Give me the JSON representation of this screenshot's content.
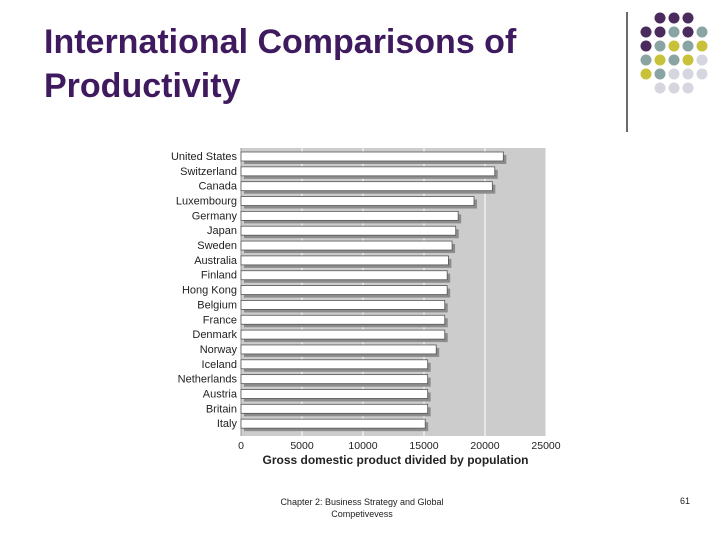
{
  "slide": {
    "title": "International Comparisons of Productivity",
    "footer": "Chapter 2: Business Strategy and Global Competivevess",
    "page_number": "61"
  },
  "colors": {
    "title": "#3f1a5e",
    "dot_purple": "#4b2a5e",
    "dot_teal": "#8aa3a3",
    "dot_yellow": "#c8c23a",
    "dot_light": "#d6d6e0",
    "plot_bg": "#cccccc",
    "bar_fill": "#ffffff",
    "bar_shadow": "#8c8c8c"
  },
  "chart_data": {
    "type": "bar",
    "orientation": "horizontal",
    "categories": [
      "United States",
      "Switzerland",
      "Canada",
      "Luxembourg",
      "Germany",
      "Japan",
      "Sweden",
      "Australia",
      "Finland",
      "Hong Kong",
      "Belgium",
      "France",
      "Denmark",
      "Norway",
      "Iceland",
      "Netherlands",
      "Austria",
      "Britain",
      "Italy"
    ],
    "values": [
      21500,
      20800,
      20600,
      19100,
      17800,
      17600,
      17300,
      17000,
      16900,
      16900,
      16700,
      16700,
      16700,
      16000,
      15300,
      15300,
      15300,
      15300,
      15100
    ],
    "xlabel": "Gross domestic product divided by population",
    "ylabel": "",
    "xlim": [
      0,
      25000
    ],
    "xticks": [
      0,
      5000,
      10000,
      15000,
      20000,
      25000
    ],
    "xtick_labels": [
      "0",
      "5000",
      "10000",
      "15000",
      "20000",
      "25000"
    ],
    "grid": true
  }
}
